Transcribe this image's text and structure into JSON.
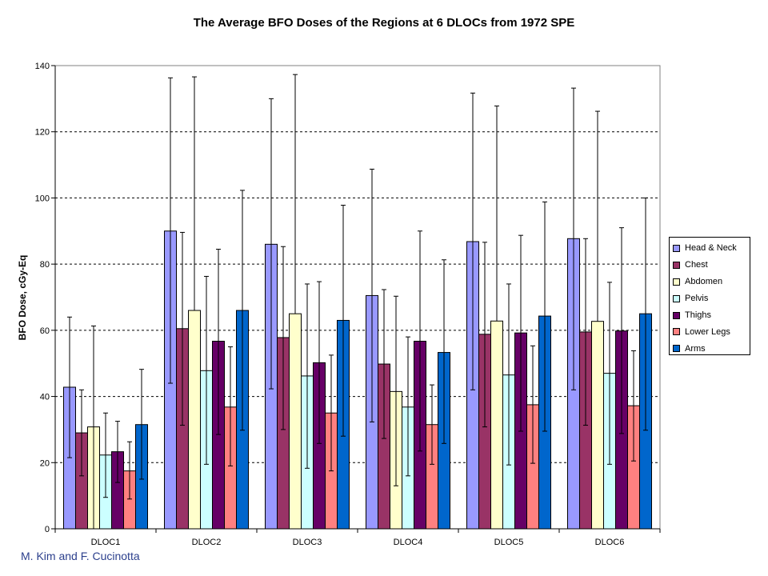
{
  "chart_data": {
    "type": "bar",
    "title": "The Average BFO Doses of the Regions at 6 DLOCs from 1972 SPE",
    "xlabel": "",
    "ylabel": "BFO Dose, cGy-Eq",
    "ylim": [
      0,
      140
    ],
    "yticks": [
      0,
      20,
      40,
      60,
      80,
      100,
      120,
      140
    ],
    "grid": "horizontal dashed",
    "legend_position": "right",
    "error_bars": true,
    "categories": [
      "DLOC1",
      "DLOC2",
      "DLOC3",
      "DLOC4",
      "DLOC5",
      "DLOC6"
    ],
    "series": [
      {
        "name": "Head & Neck",
        "color": "#9999ff",
        "values": [
          42.8,
          90.0,
          86.0,
          70.5,
          86.8,
          87.7
        ],
        "error_low": [
          21.5,
          44.0,
          42.3,
          32.3,
          42.0,
          42.0
        ],
        "error_high": [
          64.0,
          136.3,
          130.0,
          108.7,
          131.7,
          133.2
        ]
      },
      {
        "name": "Chest",
        "color": "#993366",
        "values": [
          29.0,
          60.5,
          57.8,
          49.8,
          58.8,
          59.5
        ],
        "error_low": [
          16.0,
          31.3,
          30.0,
          27.3,
          30.8,
          31.3
        ],
        "error_high": [
          42.0,
          89.6,
          85.3,
          72.3,
          86.6,
          87.7
        ]
      },
      {
        "name": "Abdomen",
        "color": "#ffffcc",
        "values": [
          30.8,
          66.0,
          65.0,
          41.5,
          62.8,
          62.7
        ],
        "error_low": [
          0.0,
          null,
          null,
          13.0,
          null,
          null
        ],
        "error_high": [
          61.3,
          136.6,
          137.3,
          70.3,
          127.8,
          126.2
        ]
      },
      {
        "name": "Pelvis",
        "color": "#ccffff",
        "values": [
          22.3,
          47.8,
          46.2,
          36.8,
          46.5,
          47.0
        ],
        "error_low": [
          9.5,
          19.5,
          18.3,
          16.0,
          19.3,
          19.5
        ],
        "error_high": [
          35.0,
          76.3,
          74.0,
          58.0,
          74.0,
          74.5
        ]
      },
      {
        "name": "Thighs",
        "color": "#660066",
        "values": [
          23.3,
          56.7,
          50.2,
          56.7,
          59.2,
          59.8
        ],
        "error_low": [
          14.0,
          28.5,
          25.8,
          23.5,
          29.5,
          28.8
        ],
        "error_high": [
          32.5,
          84.5,
          74.7,
          90.0,
          88.7,
          91.0
        ]
      },
      {
        "name": "Lower Legs",
        "color": "#ff8080",
        "values": [
          17.5,
          36.8,
          35.0,
          31.5,
          37.5,
          37.2
        ],
        "error_low": [
          9.0,
          19.0,
          17.5,
          19.5,
          19.8,
          20.5
        ],
        "error_high": [
          26.3,
          55.0,
          52.5,
          43.5,
          55.3,
          53.8
        ]
      },
      {
        "name": "Arms",
        "color": "#0066cc",
        "values": [
          31.5,
          66.0,
          63.0,
          53.3,
          64.3,
          65.0
        ],
        "error_low": [
          15.0,
          29.8,
          28.0,
          25.8,
          29.5,
          29.8
        ],
        "error_high": [
          48.2,
          102.3,
          97.8,
          81.3,
          98.8,
          100.0
        ]
      }
    ]
  },
  "credit": "M. Kim and F. Cucinotta"
}
